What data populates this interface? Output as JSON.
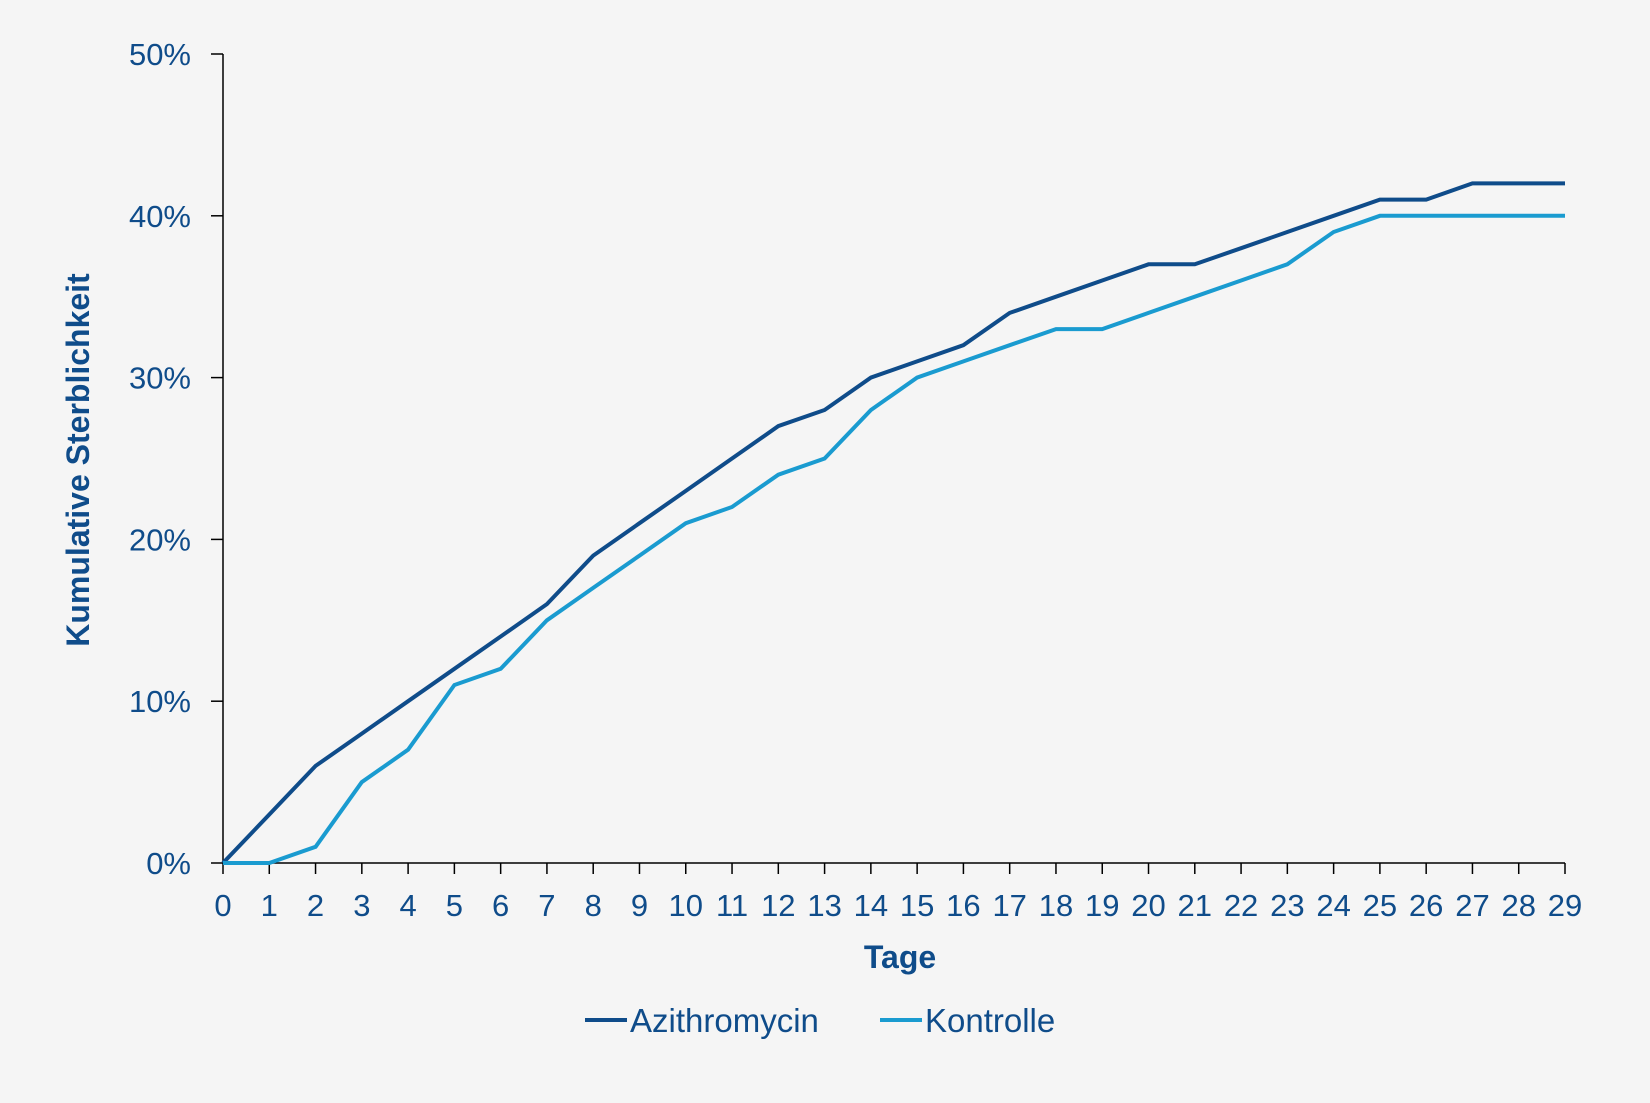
{
  "chart_data": {
    "type": "line",
    "title": "",
    "xlabel": "Tage",
    "ylabel": "Kumulative Sterblichkeit",
    "x": [
      0,
      1,
      2,
      3,
      4,
      5,
      6,
      7,
      8,
      9,
      10,
      11,
      12,
      13,
      14,
      15,
      16,
      17,
      18,
      19,
      20,
      21,
      22,
      23,
      24,
      25,
      26,
      27,
      28,
      29
    ],
    "x_tick_labels": [
      "0",
      "1",
      "2",
      "3",
      "4",
      "5",
      "6",
      "7",
      "8",
      "9",
      "10",
      "11",
      "12",
      "13",
      "14",
      "15",
      "16",
      "17",
      "18",
      "19",
      "20",
      "21",
      "22",
      "23",
      "24",
      "25",
      "26",
      "27",
      "28",
      "29"
    ],
    "y_tick_values": [
      0,
      10,
      20,
      30,
      40,
      50
    ],
    "y_tick_labels": [
      "0%",
      "10%",
      "20%",
      "30%",
      "40%",
      "50%"
    ],
    "xlim": [
      0,
      29
    ],
    "ylim": [
      0,
      50
    ],
    "grid": false,
    "legend_position": "bottom",
    "series": [
      {
        "name": "Azithromycin",
        "color": "#0f4c8a",
        "values": [
          0,
          3,
          6,
          8,
          10,
          12,
          14,
          16,
          19,
          21,
          23,
          25,
          27,
          28,
          30,
          31,
          32,
          34,
          35,
          36,
          37,
          37,
          38,
          39,
          40,
          41,
          41,
          42,
          42,
          42
        ]
      },
      {
        "name": "Kontrolle",
        "color": "#1a9bd0",
        "values": [
          0,
          0,
          1,
          5,
          7,
          11,
          12,
          15,
          17,
          19,
          21,
          22,
          24,
          25,
          28,
          30,
          31,
          32,
          33,
          33,
          34,
          35,
          36,
          37,
          39,
          40,
          40,
          40,
          40,
          40
        ]
      }
    ],
    "colors": {
      "text": "#0f4c8a",
      "axis": "#000000",
      "background": "#f5f5f5"
    }
  }
}
